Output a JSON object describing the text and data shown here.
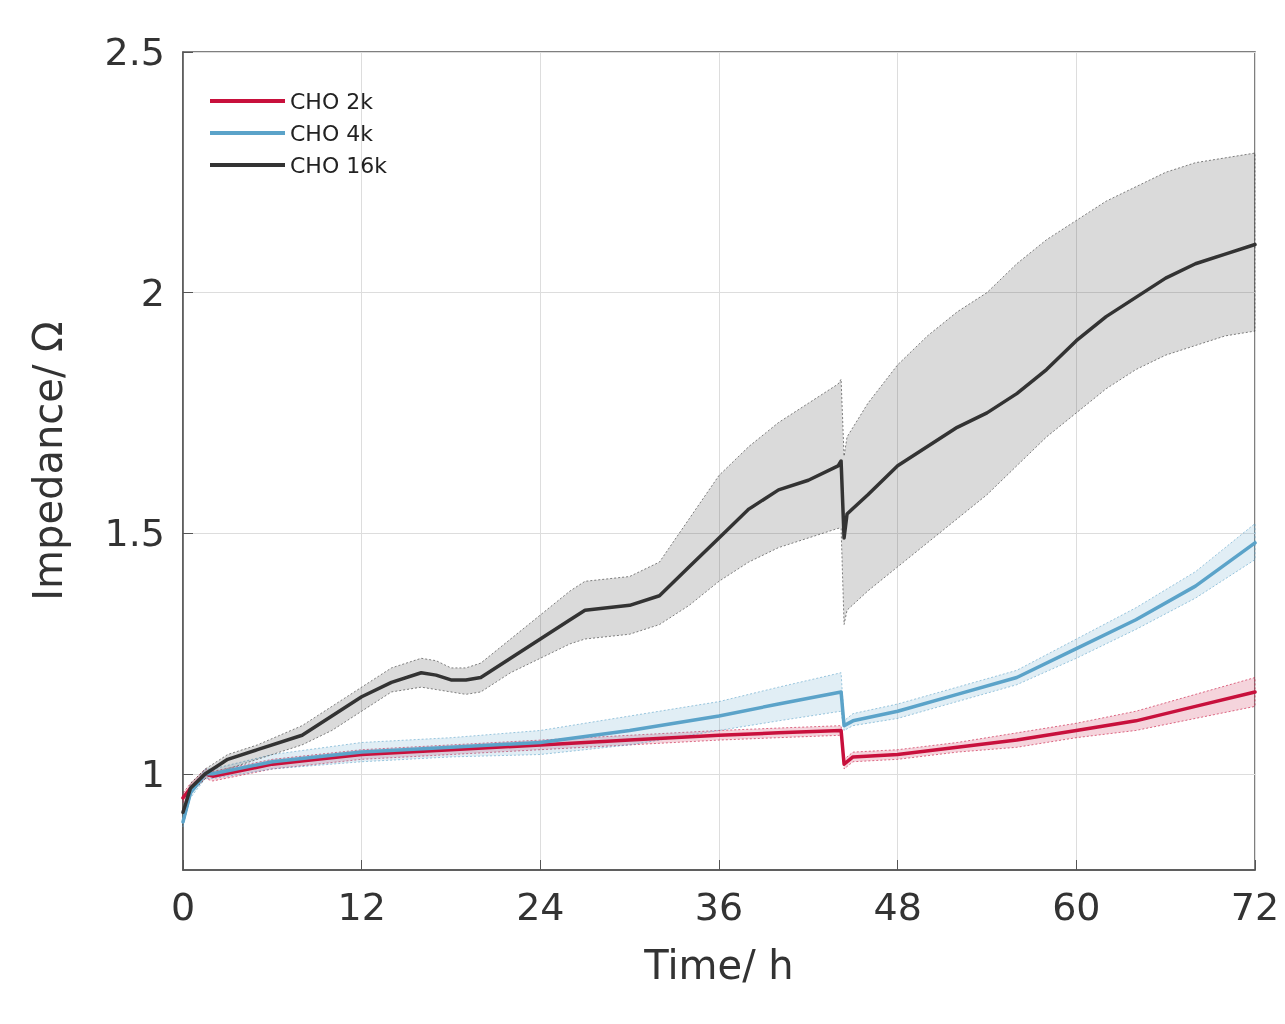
{
  "chart_data": {
    "type": "line",
    "xlabel": "Time/ h",
    "ylabel": "Impedance/ Ω",
    "xlim": [
      0,
      72
    ],
    "xticks": [
      0,
      12,
      24,
      36,
      48,
      60,
      72
    ],
    "ylim": [
      0.8,
      2.5
    ],
    "yticks": [
      1,
      1.5,
      2,
      2.5
    ],
    "grid": true,
    "legend": "top left",
    "marker": "none",
    "line_style": "solid",
    "series": [
      {
        "name": "CHO 2k",
        "color": "#c8103c",
        "x": [
          0,
          0.5,
          1.5,
          2,
          6,
          12,
          18,
          24,
          30,
          36,
          40,
          44.2,
          44.4,
          45,
          48,
          52,
          56,
          60,
          64,
          68,
          72
        ],
        "values": [
          0.95,
          0.97,
          1.0,
          0.995,
          1.02,
          1.04,
          1.05,
          1.06,
          1.07,
          1.08,
          1.085,
          1.09,
          1.02,
          1.035,
          1.04,
          1.055,
          1.07,
          1.09,
          1.11,
          1.14,
          1.17
        ],
        "lower": [
          0.94,
          0.96,
          0.99,
          0.985,
          1.01,
          1.03,
          1.04,
          1.05,
          1.06,
          1.07,
          1.075,
          1.08,
          1.01,
          1.025,
          1.03,
          1.045,
          1.055,
          1.075,
          1.09,
          1.115,
          1.14
        ],
        "upper": [
          0.96,
          0.98,
          1.01,
          1.005,
          1.03,
          1.05,
          1.06,
          1.07,
          1.08,
          1.09,
          1.095,
          1.1,
          1.03,
          1.045,
          1.05,
          1.065,
          1.085,
          1.105,
          1.13,
          1.165,
          1.2
        ]
      },
      {
        "name": "CHO 4k",
        "color": "#5ba3c9",
        "x": [
          0,
          0.5,
          1.5,
          2,
          6,
          12,
          18,
          24,
          30,
          36,
          40,
          44.2,
          44.4,
          45,
          48,
          52,
          56,
          60,
          64,
          68,
          72
        ],
        "values": [
          0.9,
          0.96,
          1.0,
          1.0,
          1.025,
          1.045,
          1.055,
          1.065,
          1.09,
          1.12,
          1.145,
          1.17,
          1.1,
          1.11,
          1.13,
          1.165,
          1.2,
          1.26,
          1.32,
          1.39,
          1.48
        ],
        "lower": [
          0.89,
          0.95,
          0.99,
          0.99,
          1.01,
          1.025,
          1.035,
          1.04,
          1.06,
          1.09,
          1.11,
          1.13,
          1.09,
          1.1,
          1.115,
          1.15,
          1.185,
          1.24,
          1.3,
          1.365,
          1.445
        ],
        "upper": [
          0.91,
          0.97,
          1.01,
          1.01,
          1.04,
          1.065,
          1.075,
          1.09,
          1.12,
          1.15,
          1.18,
          1.21,
          1.11,
          1.125,
          1.145,
          1.18,
          1.215,
          1.28,
          1.345,
          1.42,
          1.52
        ]
      },
      {
        "name": "CHO 16k",
        "color": "#333333",
        "x": [
          0,
          0.5,
          1.5,
          2,
          3,
          5,
          8,
          10,
          12,
          14,
          16,
          17,
          18,
          19,
          20,
          22,
          24,
          26,
          27,
          30,
          32,
          34,
          36,
          38,
          40,
          42,
          44,
          44.2,
          44.4,
          44.6,
          46,
          48,
          50,
          52,
          54,
          56,
          58,
          60,
          62,
          64,
          66,
          68,
          70,
          72
        ],
        "values": [
          0.92,
          0.97,
          1.0,
          1.01,
          1.03,
          1.05,
          1.08,
          1.12,
          1.16,
          1.19,
          1.21,
          1.205,
          1.195,
          1.195,
          1.2,
          1.24,
          1.28,
          1.32,
          1.34,
          1.35,
          1.37,
          1.43,
          1.49,
          1.55,
          1.59,
          1.61,
          1.64,
          1.65,
          1.49,
          1.54,
          1.58,
          1.64,
          1.68,
          1.72,
          1.75,
          1.79,
          1.84,
          1.9,
          1.95,
          1.99,
          2.03,
          2.06,
          2.08,
          2.1
        ],
        "lower": [
          0.92,
          0.96,
          0.99,
          1.0,
          1.01,
          1.03,
          1.06,
          1.09,
          1.13,
          1.17,
          1.18,
          1.175,
          1.17,
          1.165,
          1.17,
          1.21,
          1.24,
          1.27,
          1.28,
          1.29,
          1.31,
          1.35,
          1.4,
          1.44,
          1.47,
          1.49,
          1.51,
          1.51,
          1.31,
          1.34,
          1.38,
          1.43,
          1.48,
          1.53,
          1.58,
          1.64,
          1.7,
          1.75,
          1.8,
          1.84,
          1.87,
          1.89,
          1.91,
          1.92
        ],
        "upper": [
          0.92,
          0.98,
          1.01,
          1.02,
          1.04,
          1.06,
          1.1,
          1.14,
          1.18,
          1.22,
          1.24,
          1.235,
          1.22,
          1.22,
          1.23,
          1.28,
          1.33,
          1.38,
          1.4,
          1.41,
          1.44,
          1.53,
          1.62,
          1.68,
          1.73,
          1.77,
          1.81,
          1.82,
          1.66,
          1.7,
          1.77,
          1.85,
          1.91,
          1.96,
          2.0,
          2.06,
          2.11,
          2.15,
          2.19,
          2.22,
          2.25,
          2.27,
          2.28,
          2.29
        ]
      }
    ]
  }
}
